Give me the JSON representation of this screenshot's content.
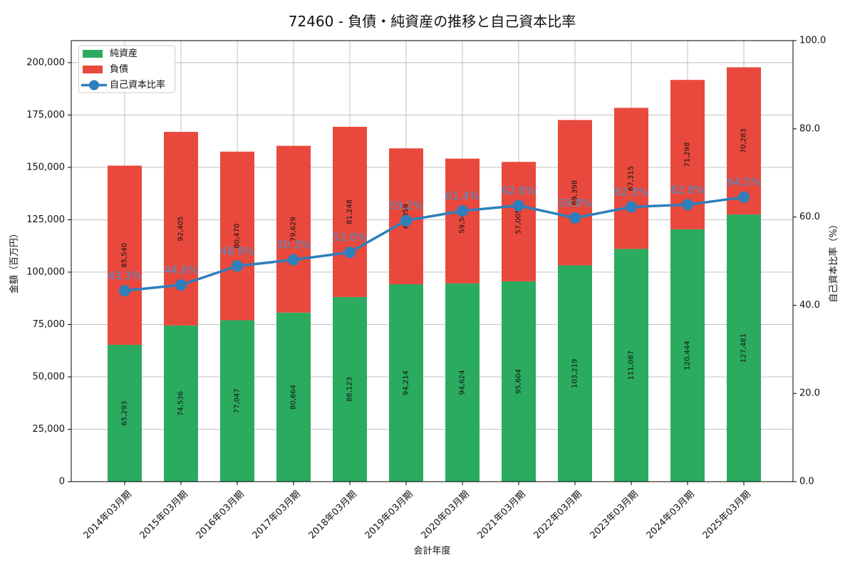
{
  "figure": {
    "title": "72460 - 負債・純資産の推移と自己資本比率"
  },
  "chart_data": {
    "type": "bar",
    "subtype": "stacked-bars-with-line-overlay",
    "title": "72460 - 負債・純資産の推移と自己資本比率",
    "xlabel": "会計年度",
    "ylabel_left": "金額（百万円）",
    "ylabel_right": "自己資本比率（%）",
    "categories": [
      "2014年03月期",
      "2015年03月期",
      "2016年03月期",
      "2017年03月期",
      "2018年03月期",
      "2019年03月期",
      "2020年03月期",
      "2021年03月期",
      "2022年03月期",
      "2023年03月期",
      "2024年03月期",
      "2025年03月期"
    ],
    "series": [
      {
        "name": "純資産",
        "kind": "bar",
        "stack": true,
        "color": "#2aab60",
        "values": [
          65293,
          74536,
          77047,
          80664,
          88123,
          94214,
          94624,
          95604,
          103219,
          111087,
          120444,
          127481
        ]
      },
      {
        "name": "負債",
        "kind": "bar",
        "stack": true,
        "color": "#e8493c",
        "values": [
          85540,
          92405,
          80470,
          79629,
          81248,
          64859,
          59543,
          57005,
          69398,
          67315,
          71298,
          70283
        ]
      },
      {
        "name": "自己資本比率",
        "kind": "line",
        "axis": "right",
        "color": "#2e7fbc",
        "marker": "circle",
        "label_color": "#4691d0",
        "values": [
          43.3,
          44.6,
          48.9,
          50.3,
          52.0,
          59.2,
          61.4,
          62.6,
          59.8,
          62.3,
          62.8,
          64.5
        ],
        "point_labels": [
          "43.3%",
          "44.6%",
          "48.9%",
          "50.3%",
          "52.0%",
          "59.2%",
          "61.4%",
          "62.6%",
          "59.8%",
          "62.3%",
          "62.8%",
          "64.5%"
        ]
      }
    ],
    "axes": {
      "left": {
        "max": 210500,
        "ticks": [
          0,
          25000,
          50000,
          75000,
          100000,
          125000,
          150000,
          175000,
          200000
        ],
        "tick_labels": [
          "0",
          "25,000",
          "50,000",
          "75,000",
          "100,000",
          "125,000",
          "150,000",
          "175,000",
          "200,000"
        ]
      },
      "right": {
        "max": 100,
        "ticks": [
          0,
          20,
          40,
          60,
          80,
          100
        ],
        "tick_labels": [
          "0.0",
          "20.0",
          "40.0",
          "60.0",
          "80.0",
          "100.0"
        ]
      }
    },
    "grid": true,
    "legend": {
      "position": "upper-left",
      "labels": [
        "純資産",
        "負債",
        "自己資本比率"
      ]
    },
    "styles": {
      "grid_color": "#bababa",
      "spine_color": "#000000",
      "bar_label_color": "#111111",
      "tick_label_color": "#111111"
    }
  }
}
